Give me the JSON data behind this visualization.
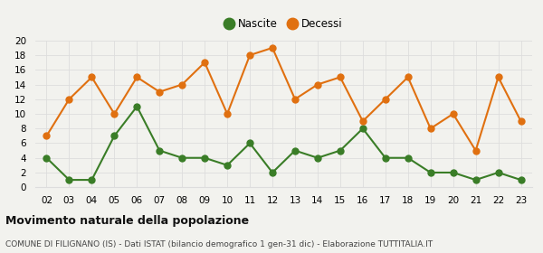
{
  "years": [
    "02",
    "03",
    "04",
    "05",
    "06",
    "07",
    "08",
    "09",
    "10",
    "11",
    "12",
    "13",
    "14",
    "15",
    "16",
    "17",
    "18",
    "19",
    "20",
    "21",
    "22",
    "23"
  ],
  "nascite": [
    4,
    1,
    1,
    7,
    11,
    5,
    4,
    4,
    3,
    6,
    2,
    5,
    4,
    5,
    8,
    4,
    4,
    2,
    2,
    1,
    2,
    1
  ],
  "decessi": [
    7,
    12,
    15,
    10,
    15,
    13,
    14,
    17,
    10,
    18,
    19,
    12,
    14,
    15,
    9,
    12,
    15,
    8,
    10,
    5,
    15,
    9
  ],
  "nascite_color": "#3a7d27",
  "decessi_color": "#e07010",
  "background_color": "#f2f2ee",
  "title": "Movimento naturale della popolazione",
  "subtitle": "COMUNE DI FILIGNANO (IS) - Dati ISTAT (bilancio demografico 1 gen-31 dic) - Elaborazione TUTTITALIA.IT",
  "ylabel_max": 20,
  "legend_nascite": "Nascite",
  "legend_decessi": "Decessi",
  "marker_size": 5,
  "linewidth": 1.5,
  "grid_color": "#dddddd",
  "title_fontsize": 9,
  "subtitle_fontsize": 6.5,
  "tick_fontsize": 7.5,
  "legend_fontsize": 8.5
}
